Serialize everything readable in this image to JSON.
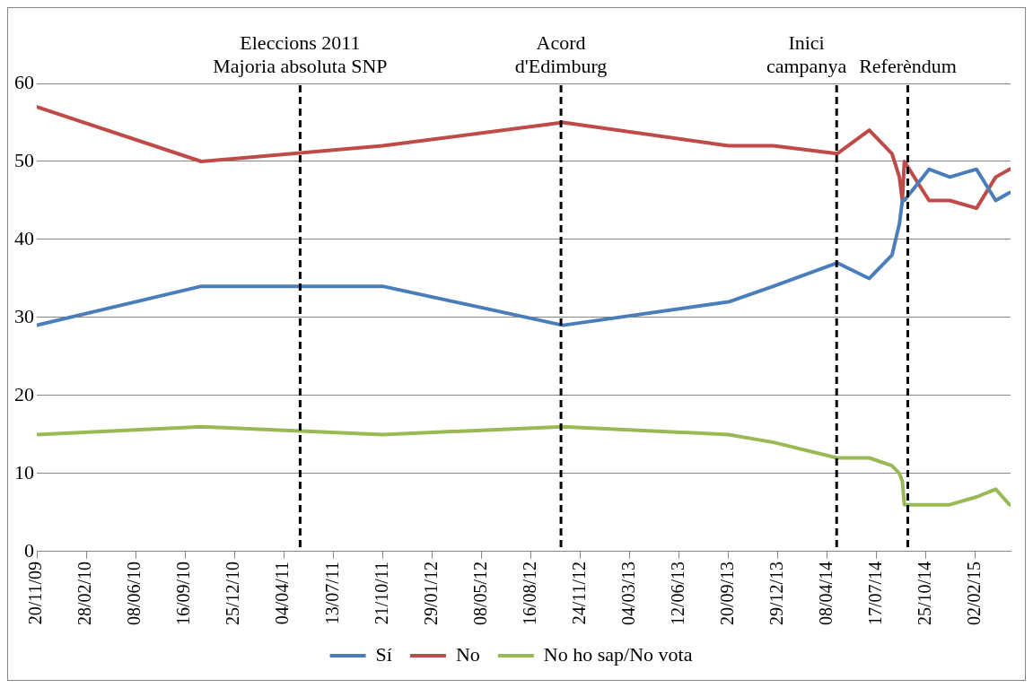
{
  "chart_data": {
    "type": "line",
    "x": [
      "2009-11-20",
      "2010-10-19",
      "2011-10-21",
      "2012-10-20",
      "2013-09-20",
      "2013-12-20",
      "2014-04-28",
      "2014-07-02",
      "2014-08-17",
      "2014-09-01",
      "2014-09-07",
      "2014-09-11",
      "2014-10-31",
      "2014-12-12",
      "2015-02-04",
      "2015-03-15",
      "2015-04-12"
    ],
    "series": [
      {
        "name": "Sí",
        "color": "#4a7ebb",
        "values": [
          29,
          34,
          34,
          29,
          32,
          34,
          37,
          35,
          38,
          42,
          45,
          45,
          49,
          48,
          49,
          45,
          46
        ]
      },
      {
        "name": "No",
        "color": "#be4b48",
        "values": [
          57,
          50,
          52,
          55,
          52,
          52,
          51,
          54,
          51,
          48,
          45,
          50,
          45,
          45,
          44,
          48,
          49
        ]
      },
      {
        "name": "No ho sap/No vota",
        "color": "#98b954",
        "values": [
          15,
          16,
          15,
          16,
          15,
          14,
          12,
          12,
          11,
          10,
          9,
          6,
          6,
          6,
          7,
          8,
          6
        ]
      }
    ],
    "xlim": [
      "2009-11-20",
      "2015-04-14"
    ],
    "xticks": [
      {
        "value": "2009-11-20",
        "label": "20/11/09"
      },
      {
        "value": "2010-02-28",
        "label": "28/02/10"
      },
      {
        "value": "2010-06-08",
        "label": "08/06/10"
      },
      {
        "value": "2010-09-16",
        "label": "16/09/10"
      },
      {
        "value": "2010-12-25",
        "label": "25/12/10"
      },
      {
        "value": "2011-04-04",
        "label": "04/04/11"
      },
      {
        "value": "2011-07-13",
        "label": "13/07/11"
      },
      {
        "value": "2011-10-21",
        "label": "21/10/11"
      },
      {
        "value": "2012-01-29",
        "label": "29/01/12"
      },
      {
        "value": "2012-05-08",
        "label": "08/05/12"
      },
      {
        "value": "2012-08-16",
        "label": "16/08/12"
      },
      {
        "value": "2012-11-24",
        "label": "24/11/12"
      },
      {
        "value": "2013-03-04",
        "label": "04/03/13"
      },
      {
        "value": "2013-06-12",
        "label": "12/06/13"
      },
      {
        "value": "2013-09-20",
        "label": "20/09/13"
      },
      {
        "value": "2013-12-29",
        "label": "29/12/13"
      },
      {
        "value": "2014-04-08",
        "label": "08/04/14"
      },
      {
        "value": "2014-07-17",
        "label": "17/07/14"
      },
      {
        "value": "2014-10-25",
        "label": "25/10/14"
      },
      {
        "value": "2015-02-02",
        "label": "02/02/15"
      }
    ],
    "ylim": [
      0,
      60
    ],
    "yticks": [
      0,
      10,
      20,
      30,
      40,
      50,
      60
    ],
    "ref_lines": [
      {
        "axis": "x",
        "value": "2011-05-07",
        "label": "Eleccions 2011\nMajoria absoluta SNP",
        "line_style": "dashed",
        "color": "#000000"
      },
      {
        "axis": "x",
        "value": "2012-10-16",
        "label": "Acord\nd'Edimburg",
        "line_style": "dashed",
        "color": "#000000"
      },
      {
        "axis": "x",
        "value": "2014-04-27",
        "label": "Inici\ncampanya",
        "line_style": "dashed",
        "color": "#000000"
      },
      {
        "axis": "x",
        "value": "2014-09-18",
        "label": "Referèndum",
        "line_style": "dashed",
        "color": "#000000"
      }
    ],
    "grid": "y",
    "legend": "bottom",
    "marker": "none",
    "line_style": "solid"
  }
}
